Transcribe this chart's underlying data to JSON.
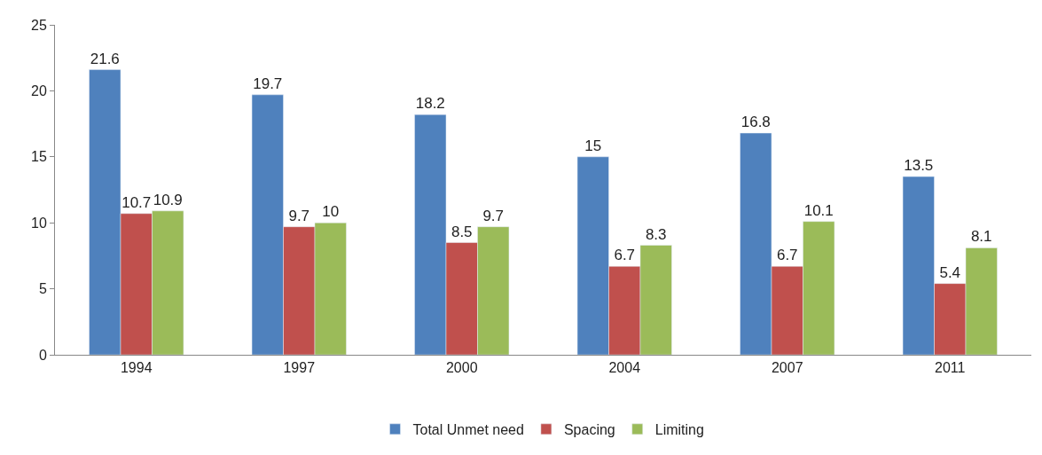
{
  "chart_data": {
    "type": "bar",
    "categories": [
      "1994",
      "1997",
      "2000",
      "2004",
      "2007",
      "2011"
    ],
    "series": [
      {
        "name": "Total Unmet need",
        "color": "#4f81bd",
        "values": [
          21.6,
          19.7,
          18.2,
          15,
          16.8,
          13.5
        ]
      },
      {
        "name": "Spacing",
        "color": "#c0504d",
        "values": [
          10.7,
          9.7,
          8.5,
          6.7,
          6.7,
          5.4
        ]
      },
      {
        "name": "Limiting",
        "color": "#9bbb59",
        "values": [
          10.9,
          10,
          9.7,
          8.3,
          10.1,
          8.1
        ]
      }
    ],
    "ylim": [
      0,
      25
    ],
    "yticks": [
      0,
      5,
      10,
      15,
      20,
      25
    ],
    "legend": "bottom",
    "data_labels": true
  }
}
